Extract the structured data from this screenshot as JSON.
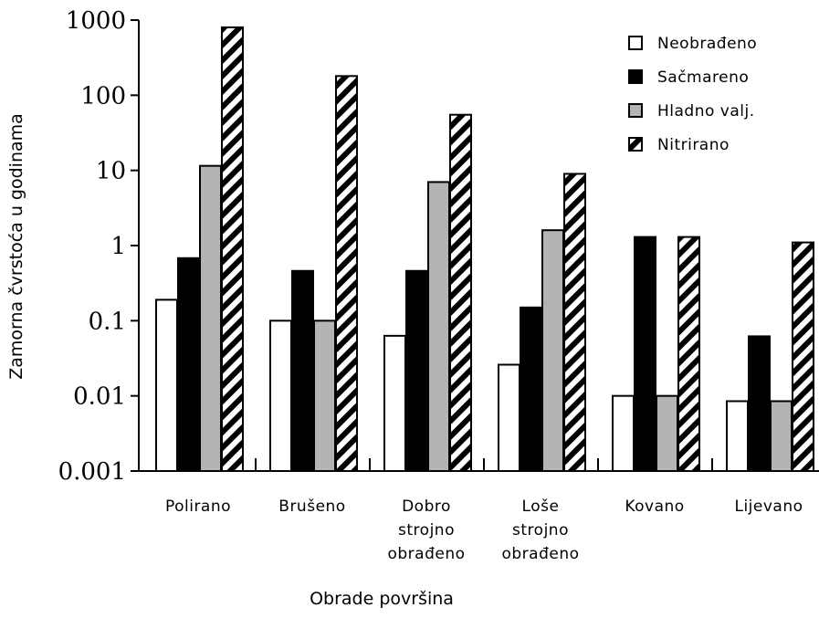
{
  "chart_data": {
    "type": "bar",
    "title": "",
    "xlabel": "Obrade površina",
    "ylabel": "Zamorna čvrstoća u godinama",
    "yscale": "log",
    "ylim": [
      0.001,
      1000
    ],
    "yticks": [
      "0.001",
      "0.01",
      "0.1",
      "1",
      "10",
      "100",
      "1000"
    ],
    "grid": false,
    "legend_position": "top-right",
    "categories": [
      [
        "Polirano"
      ],
      [
        "Brušeno"
      ],
      [
        "Dobro",
        "strojno",
        "obrađeno"
      ],
      [
        "Loše",
        "strojno",
        "obrađeno"
      ],
      [
        "Kovano"
      ],
      [
        "Lijevano"
      ]
    ],
    "series": [
      {
        "name": "Neobrađeno",
        "fill": "white",
        "values": [
          0.19,
          0.1,
          0.063,
          0.026,
          0.01,
          0.0085
        ]
      },
      {
        "name": "Sačmareno",
        "fill": "black",
        "values": [
          0.68,
          0.46,
          0.46,
          0.15,
          1.3,
          0.062
        ]
      },
      {
        "name": "Hladno valj.",
        "fill": "gray",
        "values": [
          11.5,
          0.1,
          7.0,
          1.6,
          0.01,
          0.0085
        ]
      },
      {
        "name": "Nitrirano",
        "fill": "hatch",
        "values": [
          800,
          180,
          55,
          9,
          1.3,
          1.1
        ]
      }
    ],
    "colors": {
      "gray": "#b4b4b4",
      "black": "#000000",
      "white": "#ffffff"
    }
  }
}
